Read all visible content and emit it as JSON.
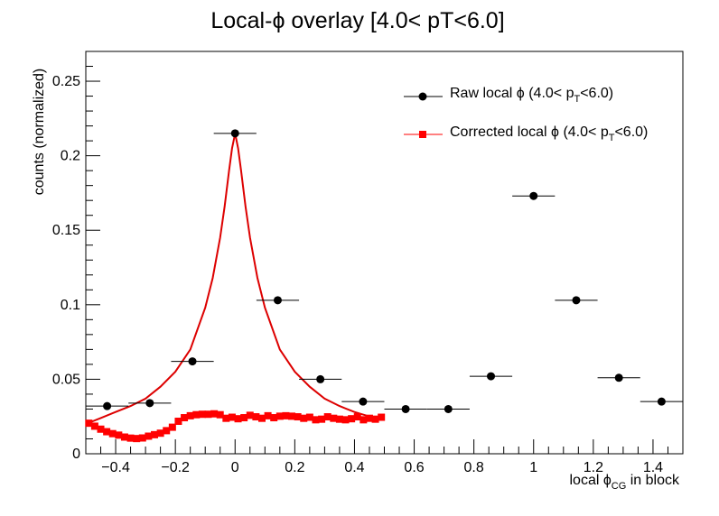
{
  "chart_data": {
    "type": "scatter",
    "title_prefix": "Local-",
    "title_symbol": "ϕ",
    "title_suffix": " overlay [4.0< pT<6.0]",
    "xlabel_main": "local ϕ",
    "xlabel_sub": "CG",
    "xlabel_tail": " in block",
    "ylabel": "counts (normalized)",
    "xlim": [
      -0.5,
      1.5
    ],
    "ylim": [
      0,
      0.27
    ],
    "x_major_ticks": [
      -0.4,
      -0.2,
      0,
      0.2,
      0.4,
      0.6,
      0.8,
      1.0,
      1.2,
      1.4
    ],
    "x_tick_labels": [
      "−0.4",
      "−0.2",
      "0",
      "0.2",
      "0.4",
      "0.6",
      "0.8",
      "1",
      "1.2",
      "1.4"
    ],
    "y_major_ticks": [
      0,
      0.05,
      0.1,
      0.15,
      0.2,
      0.25
    ],
    "y_tick_labels": [
      "0",
      "0.05",
      "0.1",
      "0.15",
      "0.2",
      "0.25"
    ],
    "grid": false,
    "legend_position": "top-right",
    "legend": [
      {
        "pre": "Raw local  ϕ (4.0< p",
        "sub": "T",
        "post": "<6.0)"
      },
      {
        "pre": "Corrected local  ϕ (4.0< p",
        "sub": "T",
        "post": "<6.0)"
      }
    ],
    "colors": {
      "raw": "#000000",
      "corrected": "#ff0000",
      "curve": "#dd0000"
    },
    "series": [
      {
        "id": "raw",
        "marker": "circle",
        "bin_half_width": 0.0714,
        "x": [
          -0.4286,
          -0.2857,
          -0.1429,
          0.0,
          0.1429,
          0.2857,
          0.4286,
          0.5714,
          0.7143,
          0.8571,
          1.0,
          1.1429,
          1.2857,
          1.4286
        ],
        "y": [
          0.032,
          0.034,
          0.062,
          0.215,
          0.103,
          0.05,
          0.035,
          0.03,
          0.03,
          0.052,
          0.173,
          0.103,
          0.051,
          0.035
        ]
      },
      {
        "id": "corrected",
        "marker": "square",
        "bin_half_width": 0.01,
        "x": [
          -0.49,
          -0.47,
          -0.45,
          -0.43,
          -0.41,
          -0.39,
          -0.37,
          -0.35,
          -0.33,
          -0.31,
          -0.29,
          -0.27,
          -0.25,
          -0.23,
          -0.21,
          -0.19,
          -0.17,
          -0.15,
          -0.13,
          -0.11,
          -0.09,
          -0.07,
          -0.05,
          -0.03,
          -0.01,
          0.01,
          0.03,
          0.05,
          0.07,
          0.09,
          0.11,
          0.13,
          0.15,
          0.17,
          0.19,
          0.21,
          0.23,
          0.25,
          0.27,
          0.29,
          0.31,
          0.33,
          0.35,
          0.37,
          0.39,
          0.41,
          0.43,
          0.45,
          0.47,
          0.49
        ],
        "y": [
          0.0205,
          0.0185,
          0.0165,
          0.0148,
          0.0135,
          0.0125,
          0.0112,
          0.0105,
          0.0102,
          0.0106,
          0.0118,
          0.0128,
          0.0138,
          0.0155,
          0.0178,
          0.0218,
          0.0242,
          0.0255,
          0.0262,
          0.0265,
          0.0265,
          0.0268,
          0.0262,
          0.0238,
          0.0245,
          0.0235,
          0.0242,
          0.0258,
          0.0248,
          0.0238,
          0.0255,
          0.0242,
          0.0252,
          0.0255,
          0.0252,
          0.0248,
          0.0238,
          0.0245,
          0.0228,
          0.0232,
          0.0248,
          0.0238,
          0.0232,
          0.0228,
          0.0235,
          0.0248,
          0.0228,
          0.0238,
          0.0232,
          0.0245
        ]
      },
      {
        "id": "corrected-fit",
        "marker": "line",
        "x": [
          -0.5,
          -0.45,
          -0.4,
          -0.35,
          -0.3,
          -0.25,
          -0.2,
          -0.15,
          -0.1,
          -0.075,
          -0.05,
          -0.035,
          -0.02,
          -0.01,
          0.0,
          0.01,
          0.02,
          0.035,
          0.05,
          0.075,
          0.1,
          0.15,
          0.2,
          0.25,
          0.3,
          0.35,
          0.4,
          0.45,
          0.5
        ],
        "y": [
          0.02,
          0.024,
          0.028,
          0.032,
          0.037,
          0.045,
          0.055,
          0.07,
          0.098,
          0.118,
          0.145,
          0.166,
          0.19,
          0.205,
          0.215,
          0.205,
          0.19,
          0.166,
          0.145,
          0.118,
          0.098,
          0.07,
          0.055,
          0.045,
          0.037,
          0.032,
          0.028,
          0.025,
          0.024
        ]
      }
    ]
  }
}
